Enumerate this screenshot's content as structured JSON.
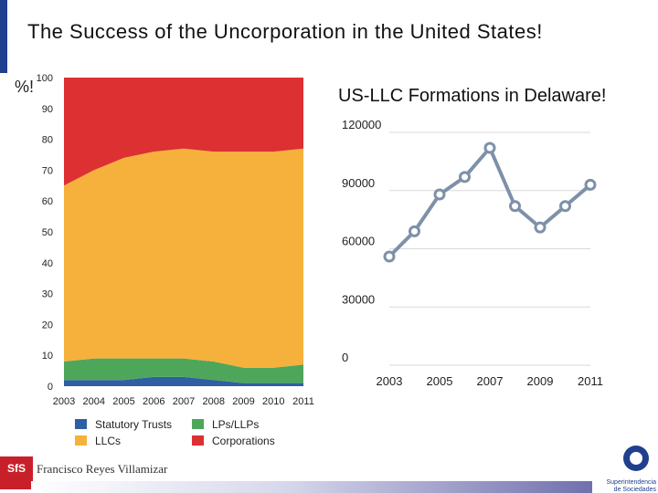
{
  "slide": {
    "title": "The Success of the Uncorporation in the United States!",
    "footer_author": "Francisco Reyes Villamizar",
    "logo_left_text": "SfS",
    "logo_right_text": "Superintendencia de Sociedades"
  },
  "colors": {
    "statutory_trusts": "#2e5fa3",
    "llcs": "#f6b13c",
    "lps_llps": "#4ea65a",
    "corporations": "#dc3033",
    "line": "#7d91a8",
    "marker_fill": "#ffffff",
    "grid": "#d9d9d9"
  },
  "chart_data": [
    {
      "type": "area",
      "ylabel": "%!",
      "x": [
        "2003",
        "2004",
        "2005",
        "2006",
        "2007",
        "2008",
        "2009",
        "2010",
        "2011"
      ],
      "ylim": [
        0,
        100
      ],
      "yticks": [
        0,
        10,
        20,
        30,
        40,
        50,
        60,
        70,
        80,
        90,
        100
      ],
      "stacked": true,
      "legend_placement": "bottom",
      "series": [
        {
          "name": "Statutory Trusts",
          "values": [
            2,
            2,
            2,
            3,
            3,
            2,
            1,
            1,
            1
          ]
        },
        {
          "name": "LPs/LLPs",
          "values": [
            6,
            7,
            7,
            6,
            6,
            6,
            5,
            5,
            6
          ]
        },
        {
          "name": "LLCs",
          "values": [
            57,
            61,
            65,
            67,
            68,
            68,
            70,
            70,
            70
          ]
        },
        {
          "name": "Corporations",
          "values": [
            35,
            30,
            26,
            24,
            23,
            24,
            24,
            24,
            23
          ]
        }
      ]
    },
    {
      "type": "line",
      "title": "US-LLC Formations in Delaware!",
      "x": [
        2003,
        2004,
        2005,
        2006,
        2007,
        2008,
        2009,
        2010,
        2011
      ],
      "xticks": [
        "2003",
        "2005",
        "2007",
        "2009",
        "2011"
      ],
      "ylim": [
        0,
        120000
      ],
      "yticks": [
        "0",
        "30000",
        "60000",
        "90000",
        "120000"
      ],
      "grid": true,
      "series": [
        {
          "values": [
            56000,
            69000,
            88000,
            97000,
            112000,
            82000,
            71000,
            82000,
            93000
          ]
        }
      ]
    }
  ]
}
